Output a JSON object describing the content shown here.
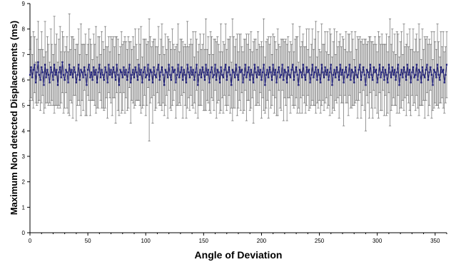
{
  "chart_data": {
    "type": "scatter",
    "title": "",
    "xlabel": "Angle of Deviation",
    "ylabel": "Maximum Non detected Displacements (ms)",
    "xlim": [
      0,
      360
    ],
    "ylim": [
      0,
      9
    ],
    "x_ticks": [
      0,
      50,
      100,
      150,
      200,
      250,
      300,
      350
    ],
    "y_ticks": [
      0,
      1,
      2,
      3,
      4,
      5,
      6,
      7,
      8,
      9
    ],
    "grid": false,
    "legend": "none",
    "marker_color": "#1a1a7a",
    "line_color": "#1a1a7a",
    "error_bar_color": "#555555",
    "series": [
      {
        "style": "line-with-markers-and-error-bars",
        "x_start": 0,
        "x_step": 1,
        "mean_range": [
          5.7,
          6.8
        ],
        "typical_mean": 6.3,
        "error_high_range": [
          6.8,
          8.4
        ],
        "error_low_range": [
          3.9,
          5.8
        ],
        "y": [
          6.2,
          6.5,
          6.1,
          6.4,
          6.6,
          5.9,
          6.3,
          6.7,
          6.2,
          6.0,
          6.5,
          6.3,
          5.8,
          6.6,
          6.1,
          6.4,
          6.2,
          5.9,
          6.5,
          6.3,
          6.0,
          6.6,
          6.2,
          6.4,
          5.8,
          6.3,
          6.5,
          6.1,
          6.7,
          6.2,
          6.0,
          6.4,
          6.3,
          5.9,
          6.6,
          6.2,
          6.4,
          6.1,
          6.5,
          6.3,
          5.9,
          6.2,
          6.6,
          6.0,
          6.4,
          6.3,
          6.1,
          6.5,
          6.2,
          5.8,
          6.4,
          6.6,
          6.1,
          6.3,
          6.0,
          6.5,
          6.2,
          6.4,
          5.9,
          6.3,
          6.6,
          6.1,
          6.4,
          6.2,
          6.0,
          6.5,
          6.3,
          5.9,
          6.6,
          6.2,
          6.4,
          6.1,
          6.5,
          6.3,
          6.0,
          6.6,
          6.2,
          5.8,
          6.4,
          6.3,
          6.1,
          6.5,
          6.2,
          6.4,
          6.0,
          6.3,
          6.6,
          5.9,
          6.2,
          6.4,
          6.1,
          6.5,
          6.3,
          6.0,
          6.6,
          6.2,
          6.4,
          5.9,
          6.3,
          6.5,
          6.1,
          6.2,
          6.6,
          6.0,
          6.4,
          6.3,
          5.9,
          6.5,
          6.2,
          6.1,
          6.4,
          6.6,
          6.0,
          6.3,
          6.5,
          6.2,
          5.8,
          6.4,
          6.3,
          6.1,
          6.6,
          6.2,
          6.0,
          6.5,
          6.3,
          6.4,
          5.9,
          6.2,
          6.6,
          6.1,
          6.3,
          6.5,
          6.0,
          6.4,
          6.2,
          5.9,
          6.6,
          6.3,
          6.1,
          6.5,
          6.2,
          6.4,
          6.0,
          6.3,
          6.6,
          5.8,
          6.2,
          6.4,
          6.1,
          6.5,
          6.3,
          6.0,
          6.6,
          6.2,
          6.4,
          5.9,
          6.3,
          6.5,
          6.1,
          6.2,
          6.6,
          6.0,
          6.4,
          6.3,
          5.9,
          6.5,
          6.2,
          6.1,
          6.4,
          6.6,
          6.0,
          6.3,
          6.5,
          6.2,
          5.8,
          6.4,
          6.3,
          6.1,
          6.6,
          6.2,
          6.0,
          6.5,
          6.3,
          6.4,
          5.9,
          6.2,
          6.6,
          6.1,
          6.3,
          6.5,
          6.0,
          6.4,
          6.2,
          5.9,
          6.6,
          6.3,
          6.1,
          6.5,
          6.2,
          6.4,
          6.0,
          6.3,
          6.6,
          5.8,
          6.2,
          6.4,
          6.1,
          6.5,
          6.3,
          6.0,
          6.6,
          6.2,
          6.4,
          5.9,
          6.3,
          6.5,
          6.1,
          6.2,
          6.6,
          6.0,
          6.4,
          6.3,
          5.9,
          6.5,
          6.2,
          6.1,
          6.4,
          6.6,
          6.0,
          6.3,
          6.5,
          6.2,
          5.8,
          6.4,
          6.3,
          6.1,
          6.6,
          6.2,
          6.0,
          6.5,
          6.3,
          6.4,
          5.9,
          6.2,
          6.6,
          6.1,
          6.3,
          6.5,
          6.0,
          6.4,
          6.2,
          5.9,
          6.6,
          6.3,
          6.1,
          6.5,
          6.2,
          6.4,
          6.0,
          6.3,
          6.6,
          5.8,
          6.2,
          6.4,
          6.1,
          6.5,
          6.3,
          6.0,
          6.6,
          6.2,
          6.4,
          5.9,
          6.3,
          6.5,
          6.1,
          6.2,
          6.6,
          6.0,
          6.4,
          6.3,
          5.9,
          6.5,
          6.2,
          6.1,
          6.4,
          6.6,
          6.0,
          6.3,
          6.5,
          6.2,
          5.8,
          6.4,
          6.3,
          6.1,
          6.6,
          6.2,
          6.0,
          6.5,
          6.3,
          6.4,
          5.9,
          6.2,
          6.6,
          6.1,
          6.3,
          6.5,
          6.0,
          6.4,
          6.2,
          5.9,
          6.6,
          6.3,
          6.1,
          6.5,
          6.2,
          6.4,
          6.0,
          6.3,
          6.6,
          5.8,
          6.2,
          6.4,
          6.1,
          6.5,
          6.3,
          6.0,
          6.6,
          6.2,
          6.4,
          5.9,
          6.3,
          6.5,
          6.1,
          6.2,
          6.6,
          6.0,
          6.4,
          6.3,
          5.9,
          6.5,
          6.2,
          6.1,
          6.4,
          6.6,
          6.0,
          6.3,
          6.5,
          6.2,
          5.8,
          6.4,
          6.3,
          6.1,
          6.6,
          6.2,
          6.0,
          6.5,
          6.3,
          6.4,
          5.9,
          6.2,
          6.6
        ],
        "error": [
          1.0,
          1.2,
          0.9,
          1.5,
          1.1,
          0.8,
          1.3,
          1.6,
          1.0,
          1.2,
          1.4,
          0.9,
          1.1,
          1.7,
          1.0,
          1.3,
          1.2,
          0.8,
          1.5,
          1.1,
          1.0,
          1.9,
          1.2,
          1.4,
          0.9,
          1.3,
          1.6,
          1.0,
          1.2,
          1.5,
          1.1,
          0.9,
          1.4,
          1.2,
          2.0,
          1.0,
          1.3,
          1.6,
          1.1,
          0.9,
          1.5,
          1.2,
          1.4,
          1.0,
          1.8,
          1.1,
          1.3,
          0.9,
          1.6,
          1.2,
          1.0,
          1.4,
          1.5,
          1.1,
          0.8,
          1.3,
          1.2,
          1.7,
          1.0,
          1.4,
          1.1,
          0.9,
          1.5,
          1.3,
          1.2,
          1.6,
          1.0,
          1.4,
          1.1,
          0.9,
          1.3,
          1.5,
          1.2,
          1.0,
          1.7,
          1.1,
          1.4,
          1.2,
          0.9,
          1.6,
          1.3,
          1.0,
          1.5,
          1.1,
          1.2,
          1.4,
          0.9,
          1.6,
          1.0,
          1.3,
          1.2,
          1.5,
          1.1,
          0.8,
          1.4,
          1.2,
          1.7,
          1.0,
          1.3,
          1.1,
          1.5,
          1.2,
          0.9,
          2.4,
          1.3,
          1.0,
          1.6,
          1.1,
          1.4,
          1.2,
          0.9,
          1.5,
          1.0,
          1.3,
          1.7,
          1.1,
          1.2,
          1.4,
          0.9,
          1.6,
          1.0,
          1.3,
          1.2,
          1.5,
          1.1,
          0.8,
          1.4,
          1.2,
          1.6,
          1.0,
          1.3,
          1.1,
          1.5,
          0.9,
          1.2,
          1.4,
          1.7,
          1.0,
          1.3,
          1.1,
          1.2,
          1.5,
          0.9,
          1.6,
          1.0,
          1.3,
          1.2,
          1.4,
          1.1,
          0.9,
          1.5,
          1.2,
          1.8,
          1.0,
          1.3,
          1.1,
          1.6,
          1.2,
          0.9,
          1.4,
          1.0,
          1.5,
          1.3,
          1.1,
          1.2,
          1.7,
          0.9,
          1.4,
          1.0,
          1.6,
          1.2,
          1.3,
          1.1,
          1.5,
          0.9,
          2.0,
          1.4,
          1.2,
          1.0,
          1.6,
          1.1,
          1.3,
          1.5,
          0.9,
          1.2,
          1.4,
          1.0,
          1.7,
          1.1,
          1.3,
          1.2,
          1.5,
          0.9,
          1.6,
          1.0,
          1.3,
          1.1,
          1.4,
          1.2,
          0.9,
          1.5,
          1.0,
          1.8,
          1.1,
          1.3,
          1.2,
          1.6,
          0.9,
          1.4,
          1.0,
          1.2,
          1.5,
          1.1,
          1.3,
          1.7,
          0.9,
          1.2,
          1.4,
          1.0,
          1.6,
          1.1,
          1.3,
          1.5,
          1.2,
          0.9,
          1.4,
          1.0,
          1.6,
          1.1,
          1.3,
          1.2,
          1.5,
          0.9,
          1.7,
          1.0,
          1.4,
          1.2,
          1.1,
          1.3,
          1.5,
          0.9,
          1.6,
          1.0,
          1.2,
          1.4,
          1.1,
          1.3,
          1.8,
          0.9,
          1.5,
          1.0,
          1.2,
          1.6,
          1.1,
          1.3,
          1.4,
          0.9,
          1.5,
          1.0,
          1.7,
          1.2,
          1.1,
          1.3,
          1.6,
          0.9,
          1.4,
          1.0,
          1.5,
          1.2,
          1.1,
          1.3,
          1.7,
          0.9,
          1.4,
          1.0,
          1.6,
          1.2,
          1.1,
          1.5,
          1.3,
          0.9,
          1.4,
          1.0,
          1.6,
          1.2,
          1.1,
          1.5,
          1.3,
          0.9,
          1.4,
          1.8,
          1.0,
          1.2,
          1.6,
          1.1,
          1.3,
          1.5,
          0.9,
          1.4,
          1.0,
          1.2,
          1.7,
          1.1,
          1.3,
          1.5,
          0.9,
          1.4,
          1.0,
          1.6,
          1.2,
          1.1,
          2.1,
          1.3,
          1.5,
          0.9,
          1.4,
          1.0,
          1.6,
          1.2,
          1.1,
          1.3,
          1.5,
          0.9,
          1.7,
          1.0,
          1.4,
          1.2,
          1.1,
          1.6,
          1.3,
          0.9,
          1.5,
          1.0,
          1.4,
          1.2,
          1.1,
          1.8,
          1.3,
          0.9,
          1.5,
          1.0,
          1.6,
          1.2,
          1.1,
          1.4,
          1.3,
          0.9,
          1.7,
          1.0,
          1.5,
          1.2,
          1.1,
          1.6,
          1.3,
          0.9,
          1.4,
          1.0,
          1.5,
          1.2,
          1.1,
          1.3
        ]
      }
    ]
  }
}
